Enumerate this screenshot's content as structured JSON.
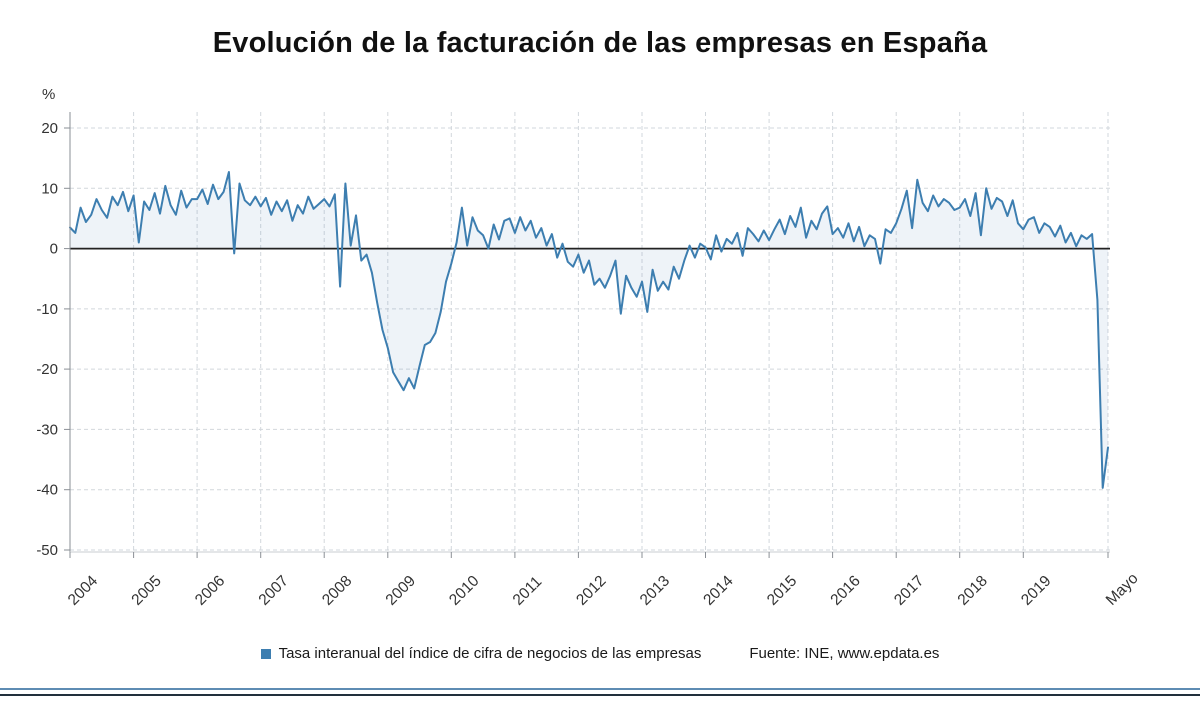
{
  "title": "Evolución de la facturación de las empresas en España",
  "y_axis": {
    "unit": "%"
  },
  "legend": {
    "series_label": "Tasa interanual del índice de cifra de negocios de las empresas",
    "source": "Fuente: INE, www.epdata.es"
  },
  "colors": {
    "line": "#3d7eb0",
    "area": "rgba(61,126,176,0.09)",
    "grid": "#d2d7dc",
    "zero_line": "#222222",
    "axis": "#8a8f95",
    "axis_light": "#c8ccd0",
    "tick_text": "#333333",
    "footer_top": "#5e8cb3",
    "footer_bottom": "#22303c"
  },
  "chart_data": {
    "type": "line",
    "title": "Evolución de la facturación de las empresas en España",
    "xlabel": "",
    "ylabel": "%",
    "ylim": [
      -50,
      20
    ],
    "yticks": [
      20,
      10,
      0,
      -10,
      -20,
      -30,
      -40,
      -50
    ],
    "grid": "dashed",
    "legend_position": "bottom",
    "frequency": "monthly",
    "x_range": [
      "2004-01",
      "2020-05"
    ],
    "x_tick_labels": [
      {
        "label": "2004",
        "index": 0
      },
      {
        "label": "2005",
        "index": 12
      },
      {
        "label": "2006",
        "index": 24
      },
      {
        "label": "2007",
        "index": 36
      },
      {
        "label": "2008",
        "index": 48
      },
      {
        "label": "2009",
        "index": 60
      },
      {
        "label": "2010",
        "index": 72
      },
      {
        "label": "2011",
        "index": 84
      },
      {
        "label": "2012",
        "index": 96
      },
      {
        "label": "2013",
        "index": 108
      },
      {
        "label": "2014",
        "index": 120
      },
      {
        "label": "2015",
        "index": 132
      },
      {
        "label": "2016",
        "index": 144
      },
      {
        "label": "2017",
        "index": 156
      },
      {
        "label": "2018",
        "index": 168
      },
      {
        "label": "2019",
        "index": 180
      },
      {
        "label": "Mayo",
        "index": 196
      }
    ],
    "series": [
      {
        "name": "Tasa interanual del índice de cifra de negocios de las empresas",
        "values": [
          3.5,
          2.6,
          6.8,
          4.4,
          5.6,
          8.2,
          6.4,
          5.1,
          8.6,
          7.2,
          9.4,
          6.2,
          8.8,
          1.0,
          7.8,
          6.4,
          9.2,
          5.8,
          10.4,
          7.2,
          5.6,
          9.6,
          6.8,
          8.2,
          8.2,
          9.8,
          7.4,
          10.6,
          8.2,
          9.4,
          12.7,
          -0.8,
          10.8,
          8.0,
          7.2,
          8.6,
          7.0,
          8.4,
          5.6,
          7.8,
          6.2,
          8.0,
          4.6,
          7.2,
          5.8,
          8.6,
          6.6,
          7.4,
          8.2,
          7.0,
          9.0,
          -6.3,
          10.8,
          0.5,
          5.5,
          -2.0,
          -1.0,
          -4.0,
          -9.0,
          -13.5,
          -16.5,
          -20.5,
          -22.0,
          -23.5,
          -21.5,
          -23.2,
          -19.5,
          -16.0,
          -15.5,
          -14.0,
          -10.5,
          -5.5,
          -2.5,
          1.0,
          6.8,
          0.5,
          5.2,
          3.0,
          2.2,
          0.0,
          4.0,
          1.5,
          4.6,
          5.0,
          2.6,
          5.2,
          3.0,
          4.6,
          1.8,
          3.4,
          0.5,
          2.4,
          -1.5,
          0.8,
          -2.2,
          -3.0,
          -1.0,
          -4.0,
          -2.0,
          -6.0,
          -5.0,
          -6.5,
          -4.5,
          -2.0,
          -10.8,
          -4.5,
          -6.5,
          -8.0,
          -5.5,
          -10.5,
          -3.5,
          -7.0,
          -5.5,
          -6.8,
          -3.0,
          -5.0,
          -2.0,
          0.5,
          -1.5,
          0.8,
          0.2,
          -1.8,
          2.2,
          -0.5,
          1.6,
          0.8,
          2.6,
          -1.2,
          3.4,
          2.4,
          1.2,
          3.0,
          1.4,
          3.2,
          4.8,
          2.4,
          5.4,
          3.6,
          6.8,
          1.8,
          4.6,
          3.2,
          5.8,
          7.0,
          2.4,
          3.4,
          1.8,
          4.2,
          1.2,
          3.6,
          0.4,
          2.2,
          1.6,
          -2.5,
          3.2,
          2.6,
          4.2,
          6.6,
          9.6,
          3.4,
          11.4,
          7.6,
          6.2,
          8.8,
          7.0,
          8.2,
          7.6,
          6.4,
          6.8,
          8.2,
          5.4,
          9.2,
          2.2,
          10.0,
          6.6,
          8.4,
          7.8,
          5.4,
          8.0,
          4.2,
          3.2,
          4.8,
          5.2,
          2.6,
          4.2,
          3.6,
          2.0,
          3.8,
          1.0,
          2.6,
          0.4,
          2.2,
          1.6,
          2.4,
          -8.5,
          -39.7,
          -33.0
        ]
      }
    ]
  }
}
